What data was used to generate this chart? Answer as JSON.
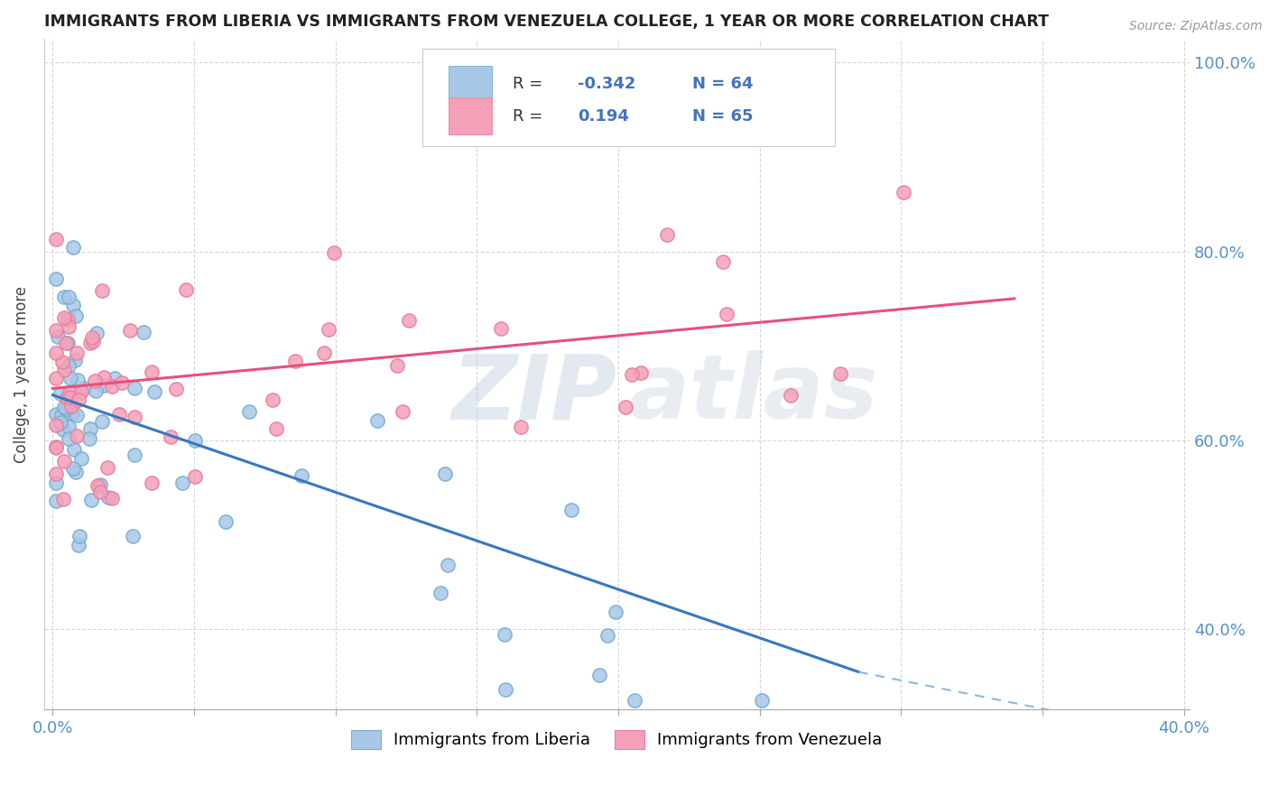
{
  "title": "IMMIGRANTS FROM LIBERIA VS IMMIGRANTS FROM VENEZUELA COLLEGE, 1 YEAR OR MORE CORRELATION CHART",
  "source": "Source: ZipAtlas.com",
  "ylabel": "College, 1 year or more",
  "xlim": [
    -0.003,
    0.402
  ],
  "ylim": [
    0.315,
    1.025
  ],
  "xticks": [
    0.0,
    0.05,
    0.1,
    0.15,
    0.2,
    0.25,
    0.3,
    0.35,
    0.4
  ],
  "xticklabels": [
    "0.0%",
    "",
    "",
    "",
    "",
    "",
    "",
    "",
    "40.0%"
  ],
  "yticks": [
    0.4,
    0.6,
    0.8,
    1.0
  ],
  "yticklabels": [
    "40.0%",
    "60.0%",
    "80.0%",
    "100.0%"
  ],
  "legend_labels": [
    "Immigrants from Liberia",
    "Immigrants from Venezuela"
  ],
  "R_liberia": -0.342,
  "N_liberia": 64,
  "R_venezuela": 0.194,
  "N_venezuela": 65,
  "color_liberia": "#a8c8e8",
  "color_venezuela": "#f4a0b8",
  "watermark_color": "#d8dce8"
}
